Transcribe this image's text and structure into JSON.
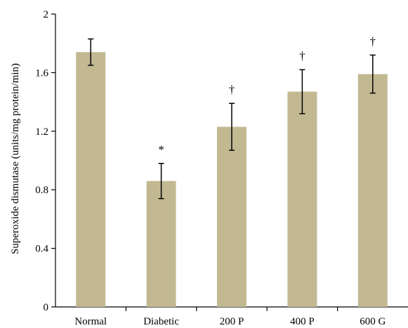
{
  "chart_data": {
    "type": "bar",
    "categories": [
      "Normal",
      "Diabetic",
      "200 P",
      "400 P",
      "600 G"
    ],
    "values": [
      1.74,
      0.86,
      1.23,
      1.47,
      1.59
    ],
    "errors": [
      0.09,
      0.12,
      0.16,
      0.15,
      0.13
    ],
    "annotations": [
      "",
      "*",
      "†",
      "†",
      "†"
    ],
    "ylabel": "Superoxide dismutase (units/mg protein/min)",
    "ylim": [
      0,
      2
    ],
    "yticks": [
      0,
      0.4,
      0.8,
      1.2,
      1.6,
      2
    ],
    "ytick_labels": [
      "0",
      "0.4",
      "0.8",
      "1.2",
      "1.6",
      "2"
    ],
    "bar_color": "#c2b993",
    "grid": false
  }
}
